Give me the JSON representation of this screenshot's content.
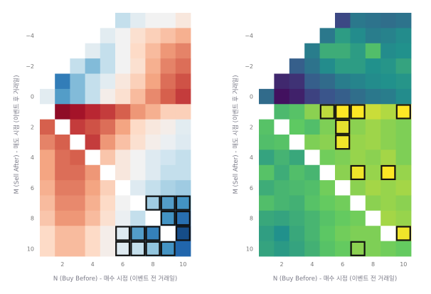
{
  "chart_data": [
    {
      "type": "heatmap",
      "name": "left-heatmap",
      "xlabel": "N (Buy Before) - 매수 시점 (이벤트 전 거래일)",
      "ylabel": "M (Sell After) - 매도 시점 (이벤트 후 거래일)",
      "x": [
        1,
        2,
        3,
        4,
        5,
        6,
        7,
        8,
        9,
        10
      ],
      "y": [
        -5,
        -4,
        -3,
        -2,
        -1,
        0,
        1,
        2,
        3,
        4,
        5,
        6,
        7,
        8,
        9,
        10
      ],
      "xticks": [
        2,
        4,
        6,
        8,
        10
      ],
      "yticks": [
        -4,
        -2,
        0,
        2,
        4,
        6,
        8,
        10
      ],
      "colorscale": [
        "#6b0022",
        "#b2182b",
        "#d6604d",
        "#f4a582",
        "#fddbc7",
        "#f2f2f2",
        "#d1e5f0",
        "#92c5de",
        "#4393c3",
        "#2166ac",
        "#0b3466"
      ],
      "values": [
        [
          null,
          null,
          null,
          null,
          null,
          0.62,
          0.55,
          0.5,
          0.5,
          0.45
        ],
        [
          null,
          null,
          null,
          null,
          0.55,
          0.5,
          0.42,
          0.38,
          0.35,
          0.32
        ],
        [
          null,
          null,
          null,
          0.55,
          0.62,
          0.5,
          0.4,
          0.34,
          0.28,
          0.25
        ],
        [
          null,
          null,
          0.62,
          0.72,
          0.62,
          0.5,
          0.42,
          0.32,
          0.25,
          0.22
        ],
        [
          null,
          0.85,
          0.72,
          0.62,
          0.55,
          0.45,
          0.38,
          0.3,
          0.22,
          0.18
        ],
        [
          0.55,
          0.78,
          0.72,
          0.62,
          0.48,
          0.42,
          0.34,
          0.26,
          0.2,
          0.15
        ],
        [
          0.05,
          0.05,
          0.08,
          0.12,
          0.15,
          0.2,
          0.28,
          0.32,
          0.38,
          0.38
        ],
        [
          0.2,
          0.3,
          0.15,
          0.18,
          0.22,
          0.3,
          0.4,
          0.45,
          0.48,
          0.55
        ],
        [
          0.25,
          0.2,
          0.22,
          0.15,
          0.28,
          0.35,
          0.42,
          0.48,
          0.52,
          0.56
        ],
        [
          0.3,
          0.22,
          0.2,
          0.3,
          0.36,
          0.45,
          0.5,
          0.56,
          0.6,
          0.62
        ],
        [
          0.3,
          0.22,
          0.22,
          0.28,
          0.36,
          0.45,
          0.5,
          0.56,
          0.62,
          0.62
        ],
        [
          0.32,
          0.24,
          0.24,
          0.3,
          0.38,
          0.48,
          0.56,
          0.62,
          0.66,
          0.68
        ],
        [
          0.34,
          0.26,
          0.26,
          0.32,
          0.4,
          0.5,
          0.58,
          0.68,
          0.78,
          0.8
        ],
        [
          0.36,
          0.28,
          0.28,
          0.34,
          0.42,
          0.52,
          0.62,
          0.72,
          0.8,
          0.88
        ],
        [
          0.4,
          0.34,
          0.34,
          0.4,
          0.48,
          0.56,
          0.78,
          0.84,
          0.78,
          0.95
        ],
        [
          0.4,
          0.34,
          0.34,
          0.4,
          0.48,
          0.56,
          0.62,
          0.7,
          0.8,
          0.9
        ]
      ],
      "diagonal_blank": [
        [
          1,
          1
        ],
        [
          2,
          2
        ],
        [
          3,
          3
        ],
        [
          4,
          4
        ],
        [
          5,
          5
        ],
        [
          6,
          6
        ],
        [
          7,
          7
        ],
        [
          8,
          8
        ],
        [
          9,
          9
        ]
      ],
      "highlighted_cells": [
        [
          8,
          7
        ],
        [
          9,
          7
        ],
        [
          10,
          7
        ],
        [
          9,
          8
        ],
        [
          10,
          8
        ],
        [
          6,
          9
        ],
        [
          7,
          9
        ],
        [
          8,
          9
        ],
        [
          10,
          9
        ],
        [
          6,
          10
        ],
        [
          7,
          10
        ],
        [
          8,
          10
        ],
        [
          9,
          10
        ]
      ]
    },
    {
      "type": "heatmap",
      "name": "right-heatmap",
      "xlabel": "N (Buy Before) - 매수 시점 (이벤트 전 거래일)",
      "ylabel": "M (Sell After) - 매도 시점 (이벤트 후 거래일)",
      "x": [
        1,
        2,
        3,
        4,
        5,
        6,
        7,
        8,
        9,
        10
      ],
      "y": [
        -5,
        -4,
        -3,
        -2,
        -1,
        0,
        1,
        2,
        3,
        4,
        5,
        6,
        7,
        8,
        9,
        10
      ],
      "xticks": [
        2,
        4,
        6,
        8,
        10
      ],
      "yticks": [
        -4,
        -2,
        0,
        2,
        4,
        6,
        8,
        10
      ],
      "colorscale": [
        "#440154",
        "#3b528b",
        "#21918c",
        "#5ec962",
        "#fde725"
      ],
      "values": [
        [
          null,
          null,
          null,
          null,
          null,
          0.22,
          0.4,
          0.38,
          0.36,
          0.38
        ],
        [
          null,
          null,
          null,
          null,
          0.4,
          0.55,
          0.48,
          0.42,
          0.44,
          0.48
        ],
        [
          null,
          null,
          null,
          0.42,
          0.62,
          0.62,
          0.55,
          0.7,
          0.48,
          0.5
        ],
        [
          null,
          null,
          0.3,
          0.38,
          0.48,
          0.55,
          0.55,
          0.5,
          0.52,
          0.58
        ],
        [
          null,
          0.12,
          0.15,
          0.3,
          0.35,
          0.42,
          0.45,
          0.48,
          0.5,
          0.52
        ],
        [
          0.35,
          0.05,
          0.1,
          0.2,
          0.26,
          0.3,
          0.36,
          0.4,
          0.42,
          0.48
        ],
        [
          0.62,
          0.68,
          0.72,
          0.82,
          0.9,
          1.0,
          1.0,
          0.92,
          0.88,
          1.0
        ],
        [
          0.72,
          0.62,
          0.75,
          0.7,
          0.8,
          0.96,
          0.82,
          0.85,
          0.82,
          0.8
        ],
        [
          0.7,
          0.72,
          0.68,
          0.8,
          0.82,
          0.98,
          0.84,
          0.85,
          0.82,
          0.8
        ],
        [
          0.58,
          0.65,
          0.6,
          0.72,
          0.78,
          0.8,
          0.84,
          0.82,
          0.86,
          0.8
        ],
        [
          0.72,
          0.62,
          0.7,
          0.66,
          0.82,
          0.82,
          0.98,
          0.84,
          1.0,
          0.84
        ],
        [
          0.62,
          0.66,
          0.68,
          0.7,
          0.78,
          0.8,
          0.82,
          0.86,
          0.84,
          0.86
        ],
        [
          0.7,
          0.66,
          0.64,
          0.72,
          0.76,
          0.78,
          0.8,
          0.82,
          0.84,
          0.82
        ],
        [
          0.6,
          0.58,
          0.62,
          0.66,
          0.72,
          0.76,
          0.78,
          0.82,
          0.86,
          0.84
        ],
        [
          0.56,
          0.5,
          0.6,
          0.66,
          0.74,
          0.78,
          0.8,
          0.8,
          0.84,
          0.98
        ],
        [
          0.58,
          0.54,
          0.58,
          0.64,
          0.72,
          0.76,
          0.82,
          0.8,
          0.78,
          0.76
        ]
      ],
      "diagonal_blank": [
        [
          1,
          1
        ],
        [
          2,
          2
        ],
        [
          3,
          3
        ],
        [
          4,
          4
        ],
        [
          5,
          5
        ],
        [
          6,
          6
        ],
        [
          7,
          7
        ],
        [
          8,
          8
        ],
        [
          9,
          9
        ]
      ],
      "highlighted_cells": [
        [
          5,
          1
        ],
        [
          6,
          1
        ],
        [
          7,
          1
        ],
        [
          10,
          1
        ],
        [
          6,
          2
        ],
        [
          6,
          3
        ],
        [
          7,
          5
        ],
        [
          9,
          5
        ],
        [
          10,
          9
        ],
        [
          7,
          10
        ]
      ]
    }
  ]
}
